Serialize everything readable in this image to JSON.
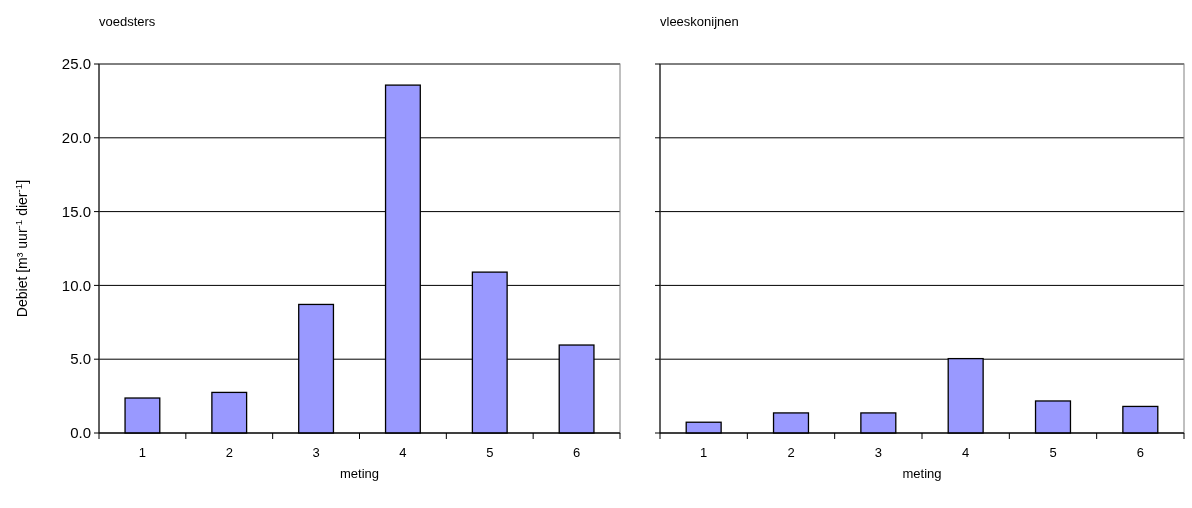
{
  "chart_data": [
    {
      "type": "bar",
      "title": "voedsters",
      "xlabel": "meting",
      "ylabel": "Debiet [m³ uur$^{-1}$ dier$^{-1}$]",
      "categories": [
        "1",
        "2",
        "3",
        "4",
        "5",
        "6"
      ],
      "values": [
        2.37,
        2.75,
        8.71,
        23.57,
        10.9,
        5.96
      ],
      "color": "#9999ff",
      "ylim": [
        0,
        25
      ],
      "yticks": [
        {
          "value": 0,
          "label": "0.0"
        },
        {
          "value": 5,
          "label": "5.0"
        },
        {
          "value": 10,
          "label": "10.0"
        },
        {
          "value": 15,
          "label": "15.0"
        },
        {
          "value": 20,
          "label": "20.0"
        },
        {
          "value": 25,
          "label": "25.0"
        }
      ],
      "grid": "y"
    },
    {
      "type": "bar",
      "title": "vleeskonijnen",
      "xlabel": "meting",
      "categories": [
        "1",
        "2",
        "3",
        "4",
        "5",
        "6"
      ],
      "values": [
        0.73,
        1.36,
        1.36,
        5.04,
        2.17,
        1.8
      ],
      "color": "#9999ff",
      "ylim": [
        0,
        25
      ],
      "yticks": [
        0,
        5,
        10,
        15,
        20,
        25
      ],
      "grid": "y",
      "tick_labels": "x"
    }
  ]
}
